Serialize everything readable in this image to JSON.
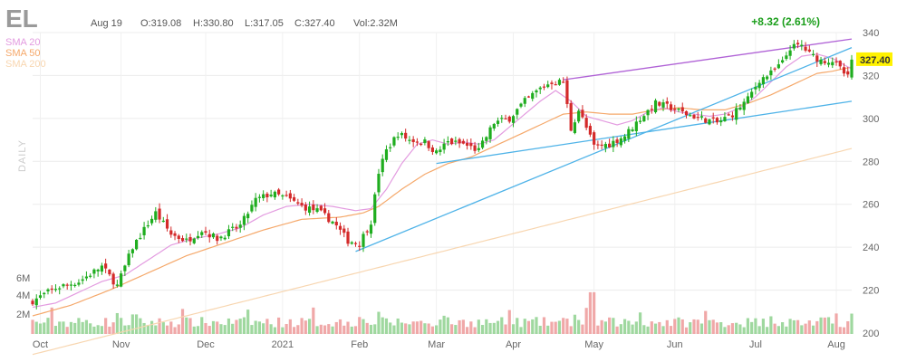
{
  "header": {
    "ticker": "EL",
    "date": "Aug 19",
    "open": "O:319.08",
    "high": "H:330.80",
    "low": "L:317.05",
    "close": "C:327.40",
    "volume": "Vol:2.32M",
    "change": "+8.32 (2.61%)"
  },
  "timeframe": "DAILY",
  "last_price": "327.40",
  "colors": {
    "up": "#1fad1f",
    "down": "#d42a2a",
    "sma20": "#e39be0",
    "sma50": "#f5a86a",
    "sma200": "#f8d6b0",
    "trendline_blue": "#4fb3e8",
    "trendline_purple": "#b062d6",
    "vol_up": "#9fd89f",
    "vol_down": "#f0a8a8",
    "price_label_bg": "#fff200"
  },
  "chart_data": {
    "type": "candlestick",
    "title": "EL",
    "xlabel": "",
    "ylabel": "",
    "ylim": [
      200,
      340
    ],
    "yticks": [
      200,
      220,
      240,
      260,
      280,
      300,
      320,
      340
    ],
    "x_labels": [
      "Oct",
      "Nov",
      "Dec",
      "2021",
      "Feb",
      "Mar",
      "Apr",
      "May",
      "Jun",
      "Jul",
      "Aug"
    ],
    "x_label_index": [
      2,
      23,
      45,
      65,
      85,
      105,
      125,
      146,
      167,
      188,
      209
    ],
    "volume_ticks": [
      "6M",
      "4M",
      "2M"
    ],
    "volume_max": 8,
    "legend": [
      "SMA 20",
      "SMA 50",
      "SMA 200"
    ],
    "anchors": [
      [
        0,
        215
      ],
      [
        6,
        221
      ],
      [
        12,
        224
      ],
      [
        18,
        231
      ],
      [
        22,
        222
      ],
      [
        26,
        240
      ],
      [
        30,
        251
      ],
      [
        32,
        256
      ],
      [
        36,
        246
      ],
      [
        40,
        243
      ],
      [
        44,
        248
      ],
      [
        48,
        244
      ],
      [
        54,
        250
      ],
      [
        58,
        262
      ],
      [
        62,
        265
      ],
      [
        66,
        263
      ],
      [
        70,
        259
      ],
      [
        74,
        257
      ],
      [
        78,
        252
      ],
      [
        82,
        243
      ],
      [
        85,
        242
      ],
      [
        88,
        252
      ],
      [
        90,
        275
      ],
      [
        92,
        285
      ],
      [
        95,
        293
      ],
      [
        98,
        290
      ],
      [
        102,
        289
      ],
      [
        105,
        284
      ],
      [
        108,
        289
      ],
      [
        112,
        288
      ],
      [
        116,
        285
      ],
      [
        120,
        298
      ],
      [
        124,
        300
      ],
      [
        128,
        308
      ],
      [
        132,
        314
      ],
      [
        135,
        317
      ],
      [
        138,
        317
      ],
      [
        140,
        295
      ],
      [
        142,
        304
      ],
      [
        146,
        287
      ],
      [
        150,
        288
      ],
      [
        154,
        292
      ],
      [
        158,
        300
      ],
      [
        162,
        307
      ],
      [
        166,
        305
      ],
      [
        170,
        302
      ],
      [
        174,
        300
      ],
      [
        178,
        298
      ],
      [
        182,
        302
      ],
      [
        186,
        309
      ],
      [
        189,
        318
      ],
      [
        192,
        321
      ],
      [
        195,
        326
      ],
      [
        197,
        333
      ],
      [
        200,
        334
      ],
      [
        202,
        330
      ],
      [
        205,
        327
      ],
      [
        208,
        327
      ],
      [
        210,
        323
      ],
      [
        212,
        319
      ],
      [
        213,
        327
      ]
    ],
    "sma20_anchors": [
      [
        0,
        212
      ],
      [
        6,
        214
      ],
      [
        12,
        219
      ],
      [
        18,
        224
      ],
      [
        24,
        227
      ],
      [
        30,
        234
      ],
      [
        36,
        241
      ],
      [
        42,
        244
      ],
      [
        48,
        246
      ],
      [
        54,
        249
      ],
      [
        60,
        255
      ],
      [
        66,
        259
      ],
      [
        72,
        260
      ],
      [
        78,
        259
      ],
      [
        84,
        257
      ],
      [
        88,
        258
      ],
      [
        92,
        267
      ],
      [
        96,
        279
      ],
      [
        100,
        288
      ],
      [
        104,
        290
      ],
      [
        108,
        288
      ],
      [
        112,
        289
      ],
      [
        116,
        288
      ],
      [
        120,
        290
      ],
      [
        124,
        296
      ],
      [
        128,
        302
      ],
      [
        132,
        308
      ],
      [
        136,
        313
      ],
      [
        140,
        308
      ],
      [
        144,
        301
      ],
      [
        148,
        299
      ],
      [
        152,
        297
      ],
      [
        156,
        299
      ],
      [
        160,
        303
      ],
      [
        164,
        305
      ],
      [
        168,
        303
      ],
      [
        172,
        302
      ],
      [
        176,
        301
      ],
      [
        180,
        302
      ],
      [
        184,
        305
      ],
      [
        188,
        310
      ],
      [
        192,
        317
      ],
      [
        196,
        324
      ],
      [
        200,
        329
      ],
      [
        204,
        330
      ],
      [
        208,
        328
      ],
      [
        213,
        323
      ]
    ],
    "sma50_anchors": [
      [
        0,
        208
      ],
      [
        10,
        213
      ],
      [
        20,
        220
      ],
      [
        30,
        228
      ],
      [
        40,
        236
      ],
      [
        50,
        242
      ],
      [
        60,
        248
      ],
      [
        70,
        253
      ],
      [
        80,
        254
      ],
      [
        86,
        256
      ],
      [
        90,
        259
      ],
      [
        96,
        267
      ],
      [
        102,
        274
      ],
      [
        108,
        279
      ],
      [
        114,
        282
      ],
      [
        120,
        287
      ],
      [
        126,
        292
      ],
      [
        132,
        297
      ],
      [
        138,
        302
      ],
      [
        144,
        303
      ],
      [
        150,
        302
      ],
      [
        156,
        302
      ],
      [
        162,
        304
      ],
      [
        168,
        305
      ],
      [
        174,
        304
      ],
      [
        180,
        304
      ],
      [
        186,
        307
      ],
      [
        192,
        311
      ],
      [
        198,
        316
      ],
      [
        204,
        321
      ],
      [
        208,
        322
      ],
      [
        213,
        324
      ]
    ],
    "sma200": [
      [
        0,
        190
      ],
      [
        213,
        286
      ]
    ],
    "trendlines": [
      {
        "color": "blue",
        "from": [
          84,
          238
        ],
        "to": [
          213,
          333
        ]
      },
      {
        "color": "blue",
        "from": [
          105,
          279
        ],
        "to": [
          213,
          308
        ]
      },
      {
        "color": "purple",
        "from": [
          138,
          318
        ],
        "to": [
          213,
          337
        ]
      }
    ],
    "last_close": 327.4,
    "grid": true
  }
}
